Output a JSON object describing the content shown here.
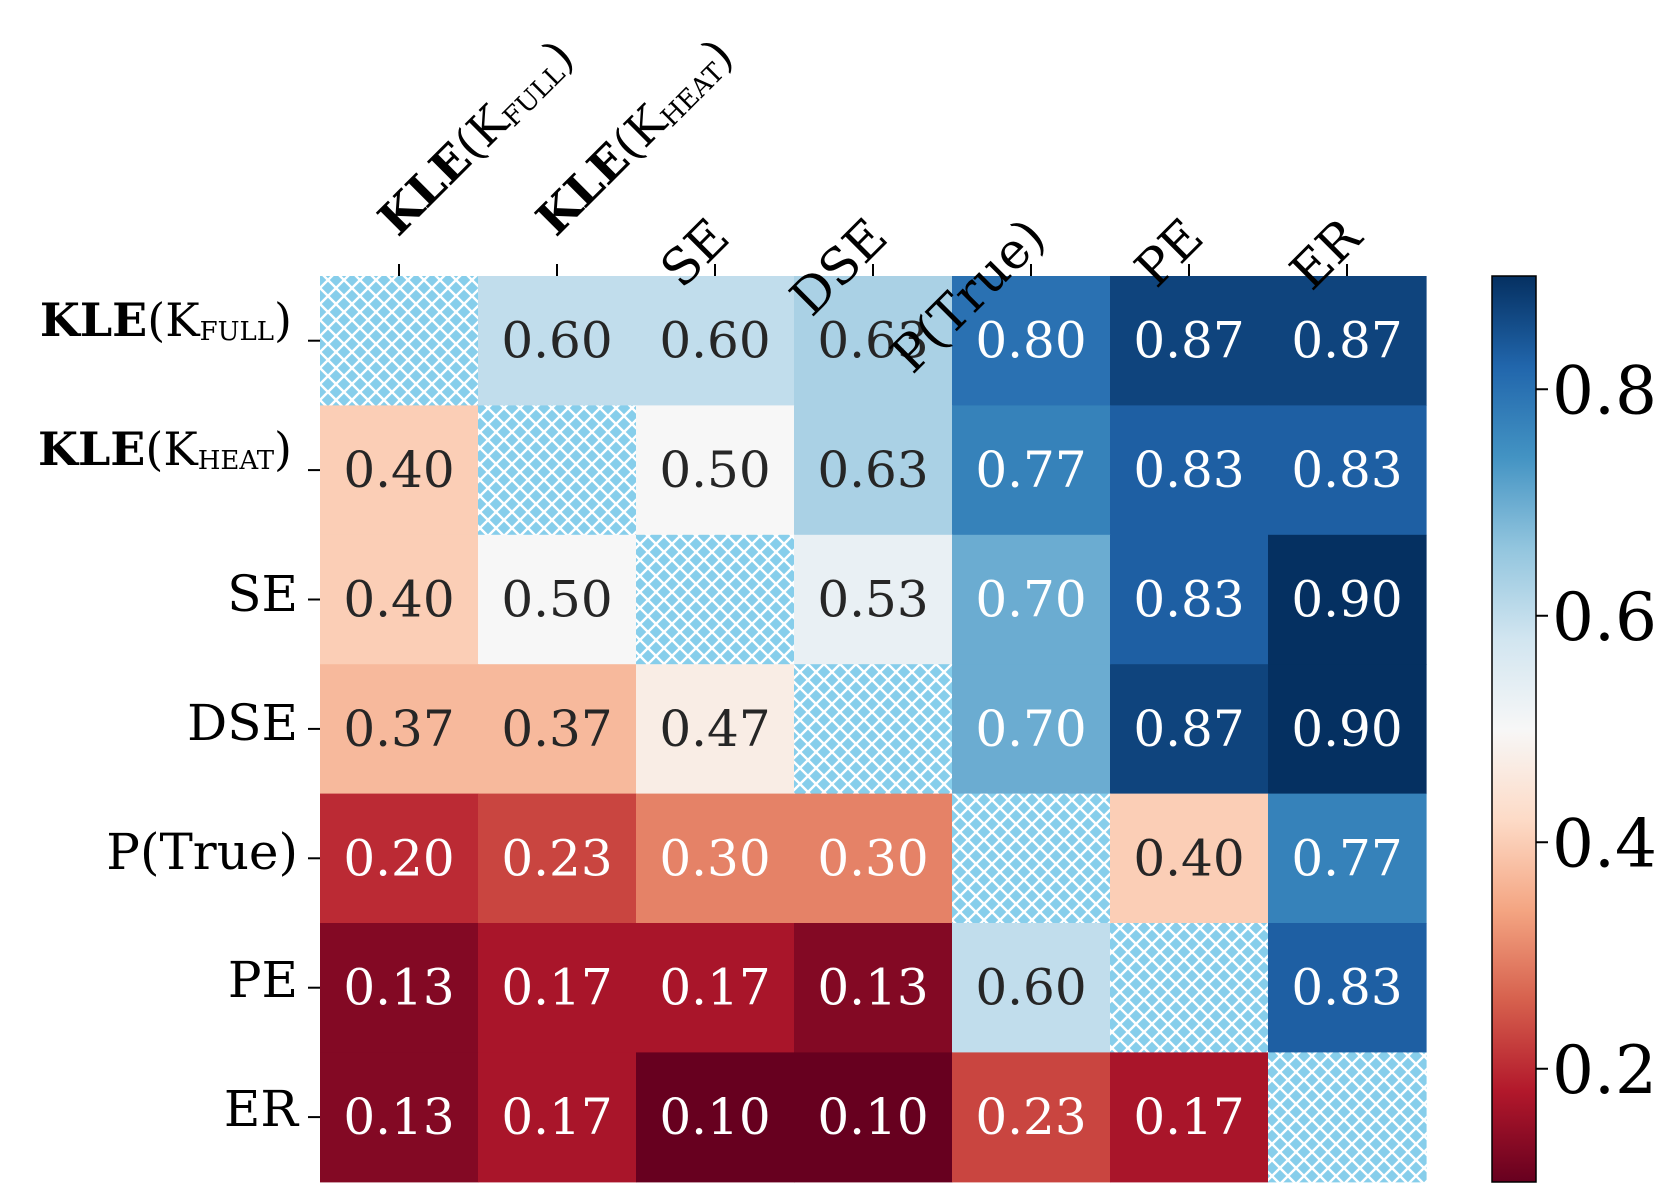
{
  "chart_data": {
    "type": "heatmap",
    "rows": [
      "KLE(K_FULL)",
      "KLE(K_HEAT)",
      "SE",
      "DSE",
      "P(True)",
      "PE",
      "ER"
    ],
    "cols": [
      "KLE(K_FULL)",
      "KLE(K_HEAT)",
      "SE",
      "DSE",
      "P(True)",
      "PE",
      "ER"
    ],
    "values": [
      [
        null,
        0.6,
        0.6,
        0.63,
        0.8,
        0.87,
        0.87
      ],
      [
        0.4,
        null,
        0.5,
        0.63,
        0.77,
        0.83,
        0.83
      ],
      [
        0.4,
        0.5,
        null,
        0.53,
        0.7,
        0.83,
        0.9
      ],
      [
        0.37,
        0.37,
        0.47,
        null,
        0.7,
        0.87,
        0.9
      ],
      [
        0.2,
        0.23,
        0.3,
        0.3,
        null,
        0.4,
        0.77
      ],
      [
        0.13,
        0.17,
        0.17,
        0.13,
        0.6,
        null,
        0.83
      ],
      [
        0.13,
        0.17,
        0.1,
        0.1,
        0.23,
        0.17,
        null
      ]
    ],
    "colormap": "RdBu",
    "vmin": 0.1,
    "vmax": 0.9,
    "colorbar_ticks": [
      0.2,
      0.4,
      0.6,
      0.8
    ],
    "colorbar_tick_labels": [
      "0.2",
      "0.4",
      "0.6",
      "0.8"
    ],
    "diagonal": "hatched",
    "annotation_format": "0.00"
  },
  "labels": {
    "kle_bold": "KLE",
    "kle_full": {
      "open": "(K",
      "sub": "FULL",
      "close": ")"
    },
    "kle_heat": {
      "open": "(K",
      "sub": "HEAT",
      "close": ")"
    },
    "se": "SE",
    "dse": "DSE",
    "ptrue": "P(True)",
    "pe": "PE",
    "er": "ER"
  },
  "colors": {
    "hatch_fill": "#87ceeb",
    "hatch_line": "#ffffff",
    "text_dark": "#262626",
    "text_light": "#ffffff"
  }
}
